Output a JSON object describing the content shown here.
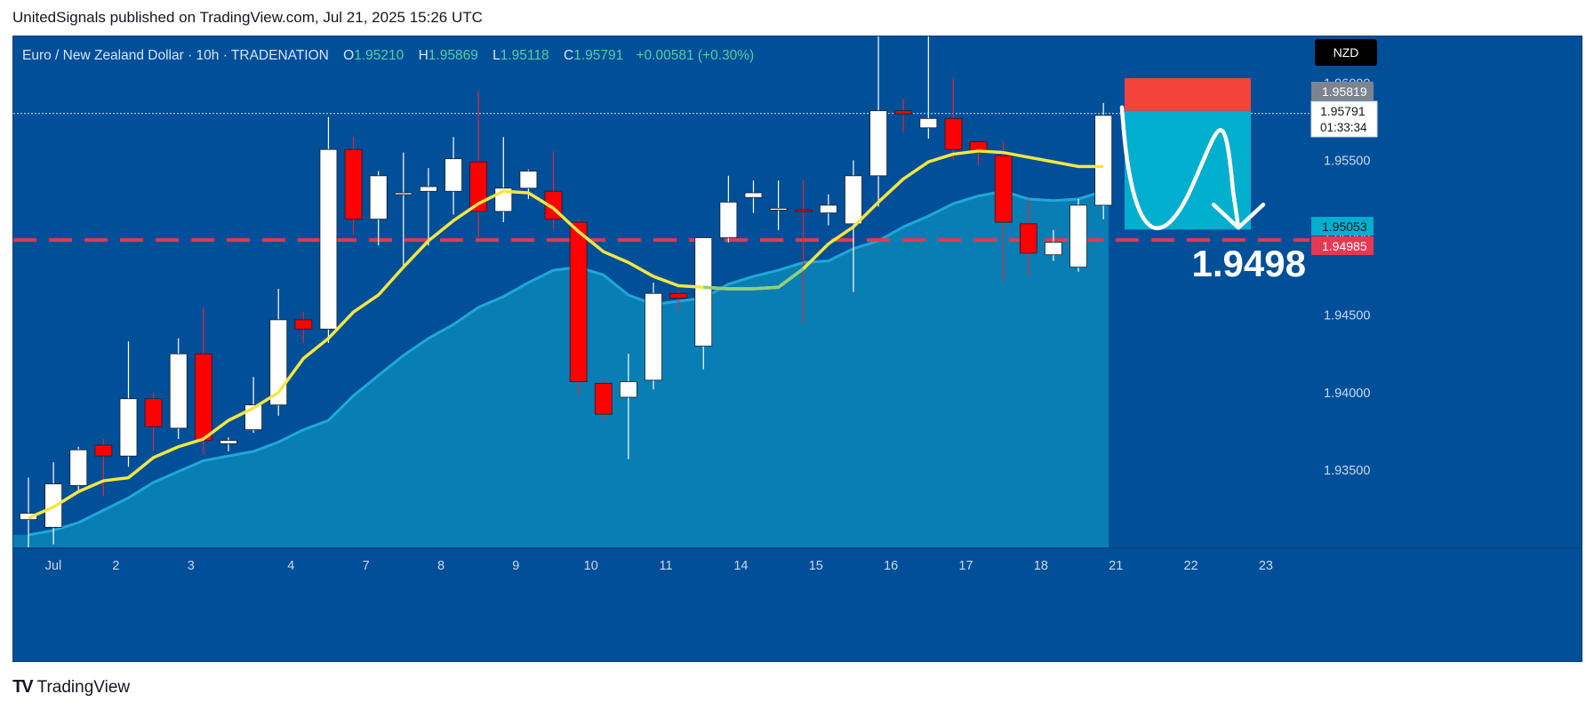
{
  "header": {
    "published_by": "UnitedSignals published on TradingView.com, Jul 21, 2025 15:26 UTC"
  },
  "legend": {
    "symbol": "Euro / New Zealand Dollar · 10h · TRADENATION",
    "o_label": "O",
    "o_value": "1.95210",
    "h_label": "H",
    "h_value": "1.95869",
    "l_label": "L",
    "l_value": "1.95118",
    "c_label": "C",
    "c_value": "1.95791",
    "change": "+0.00581 (+0.30%)"
  },
  "footer": {
    "brand_mark": "TV",
    "brand": "TradingView"
  },
  "colors": {
    "background": "#014f98",
    "up": "#ffffff",
    "down": "#ff0000",
    "ma_line": "#f5e642",
    "ma_line_alt": "#8fd07a",
    "cloud": "#0a86b8",
    "risk_zone": "#f4433a",
    "reward_zone": "#00aece",
    "dashed_level": "#e53950"
  },
  "chart_data": {
    "type": "candlestick",
    "instrument": "EUR/NZD",
    "timeframe": "10h",
    "currency": "NZD",
    "ylim": [
      1.93,
      1.963
    ],
    "y_ticks": [
      "1.96000",
      "1.95500",
      "1.95000",
      "1.94500",
      "1.94000",
      "1.93500"
    ],
    "x_ticks": [
      "Jul",
      "2",
      "3",
      "4",
      "7",
      "8",
      "9",
      "10",
      "11",
      "14",
      "15",
      "16",
      "17",
      "18",
      "21",
      "22",
      "23"
    ],
    "candles": [
      [
        1.9318,
        1.9322,
        1.93,
        1.9345
      ],
      [
        1.9313,
        1.9341,
        1.9302,
        1.9355
      ],
      [
        1.934,
        1.9363,
        1.9335,
        1.9365
      ],
      [
        1.9366,
        1.9359,
        1.9333,
        1.937
      ],
      [
        1.9359,
        1.9396,
        1.9352,
        1.9433
      ],
      [
        1.9396,
        1.9378,
        1.9362,
        1.94
      ],
      [
        1.9377,
        1.9425,
        1.937,
        1.9435
      ],
      [
        1.9425,
        1.9369,
        1.936,
        1.9455
      ],
      [
        1.9367,
        1.9369,
        1.9362,
        1.9371
      ],
      [
        1.9376,
        1.9392,
        1.9374,
        1.941
      ],
      [
        1.9392,
        1.9447,
        1.9385,
        1.9467
      ],
      [
        1.9447,
        1.9441,
        1.9432,
        1.9452
      ],
      [
        1.9441,
        1.9557,
        1.9432,
        1.9578
      ],
      [
        1.9557,
        1.9512,
        1.9502,
        1.9565
      ],
      [
        1.9512,
        1.954,
        1.9495,
        1.9543
      ],
      [
        1.9529,
        1.9529,
        1.948,
        1.9555
      ],
      [
        1.953,
        1.9533,
        1.9495,
        1.9545
      ],
      [
        1.953,
        1.9551,
        1.9515,
        1.9565
      ],
      [
        1.9549,
        1.9517,
        1.95,
        1.9595
      ],
      [
        1.9517,
        1.9532,
        1.951,
        1.9565
      ],
      [
        1.9532,
        1.9543,
        1.9525,
        1.9544
      ],
      [
        1.953,
        1.9512,
        1.9505,
        1.9556
      ],
      [
        1.951,
        1.9407,
        1.9398,
        1.9512
      ],
      [
        1.9406,
        1.9386,
        1.9382,
        1.9408
      ],
      [
        1.9397,
        1.9407,
        1.9357,
        1.9425
      ],
      [
        1.9408,
        1.9464,
        1.9402,
        1.9471
      ],
      [
        1.9464,
        1.9461,
        1.9453,
        1.9466
      ],
      [
        1.943,
        1.95,
        1.9415,
        1.95
      ],
      [
        1.95,
        1.9523,
        1.9497,
        1.954
      ],
      [
        1.9526,
        1.9529,
        1.9516,
        1.9537
      ],
      [
        1.9519,
        1.9519,
        1.9505,
        1.9537
      ],
      [
        1.9518,
        1.9517,
        1.9445,
        1.9537
      ],
      [
        1.9516,
        1.9521,
        1.9508,
        1.9528
      ],
      [
        1.9509,
        1.954,
        1.9465,
        1.955
      ],
      [
        1.954,
        1.9582,
        1.952,
        1.9633
      ],
      [
        1.9582,
        1.958,
        1.9568,
        1.959
      ],
      [
        1.9571,
        1.9577,
        1.9564,
        1.9633
      ],
      [
        1.9577,
        1.9557,
        1.955,
        1.9603
      ],
      [
        1.9562,
        1.9556,
        1.9547,
        1.9562
      ],
      [
        1.9553,
        1.951,
        1.9472,
        1.9562
      ],
      [
        1.9509,
        1.949,
        1.9475,
        1.9525
      ],
      [
        1.9489,
        1.9497,
        1.9485,
        1.9505
      ],
      [
        1.9481,
        1.9521,
        1.9478,
        1.9525
      ],
      [
        1.9521,
        1.9579,
        1.9512,
        1.9587
      ]
    ],
    "moving_average": [
      1.9319,
      1.9326,
      1.9336,
      1.9343,
      1.9345,
      1.9358,
      1.9365,
      1.937,
      1.9382,
      1.939,
      1.94,
      1.9422,
      1.9435,
      1.9452,
      1.9463,
      1.9481,
      1.9498,
      1.9511,
      1.9522,
      1.953,
      1.9529,
      1.9519,
      1.9504,
      1.9491,
      1.9484,
      1.9475,
      1.9469,
      1.9468,
      1.9467,
      1.9467,
      1.9468,
      1.948,
      1.9496,
      1.9507,
      1.9523,
      1.9538,
      1.9549,
      1.9554,
      1.9556,
      1.9555,
      1.9552,
      1.9549,
      1.9546,
      1.9546
    ],
    "cloud_top": [
      1.9308,
      1.9311,
      1.9316,
      1.9324,
      1.9332,
      1.9342,
      1.9349,
      1.9356,
      1.9359,
      1.9362,
      1.9368,
      1.9376,
      1.9382,
      1.9398,
      1.9411,
      1.9424,
      1.9435,
      1.9444,
      1.9455,
      1.9462,
      1.9471,
      1.9479,
      1.9481,
      1.9476,
      1.9463,
      1.9457,
      1.9459,
      1.9461,
      1.947,
      1.9475,
      1.9479,
      1.9484,
      1.9485,
      1.9493,
      1.9498,
      1.9507,
      1.9514,
      1.9522,
      1.9527,
      1.953,
      1.9525,
      1.9524,
      1.9525,
      1.953
    ],
    "current_price": "1.95791",
    "current_price_countdown": "01:33:34",
    "level_labels": [
      {
        "value": "1.95819",
        "style": "gray"
      },
      {
        "value": "1.95053",
        "style": "cyan"
      },
      {
        "value": "1.94985",
        "style": "red"
      }
    ],
    "target_level": 1.94985,
    "target_label": "1.9498",
    "trade_box": {
      "stop": 1.9603,
      "entry": 1.95819,
      "target": 1.95053
    }
  }
}
